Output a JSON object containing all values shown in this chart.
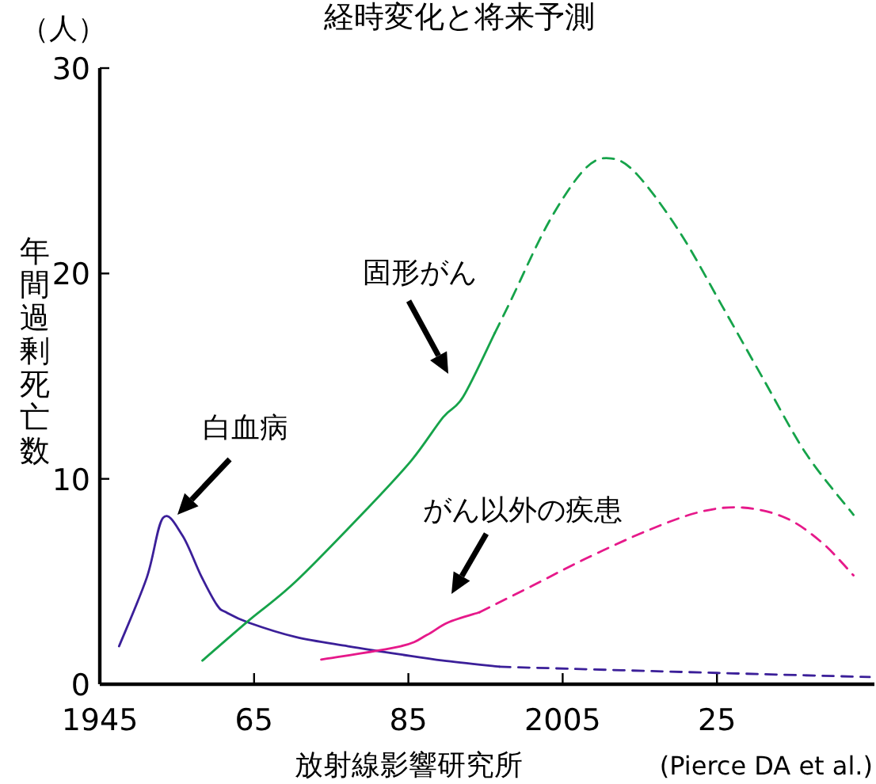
{
  "chart_data": {
    "type": "line",
    "title": "経時変化と将来予測",
    "ylabel": "年間過剰死亡数",
    "xlim": [
      1945,
      2045
    ],
    "ylim": [
      0,
      30
    ],
    "xticks": [
      1945,
      {
        "value": 1965,
        "label": "65"
      },
      {
        "value": 1985,
        "label": "85"
      },
      2005,
      {
        "value": 2025,
        "label": "25"
      }
    ],
    "yticks": [
      0,
      10,
      20,
      30
    ],
    "series": [
      {
        "color": "#3b1f99",
        "line_style": "solid",
        "x": [
          1947.5,
          1951.1,
          1953.2,
          1955.7,
          1958.1,
          1960.2,
          1961.4,
          1964.3,
          1970.4,
          1977.2,
          1984,
          1989.5,
          1996.8
        ],
        "values": [
          1.85,
          5.2,
          8.1,
          7.25,
          5.3,
          3.85,
          3.5,
          3.0,
          2.3,
          1.85,
          1.45,
          1.15,
          0.85
        ]
      },
      {
        "color": "#3b1f99",
        "line_style": "dashed",
        "x": [
          1996.8,
          2025,
          2044.8
        ],
        "values": [
          0.85,
          0.55,
          0.35
        ]
      },
      {
        "color": "#16a34a",
        "line_style": "solid",
        "x": [
          1958.3,
          1964.3,
          1970.4,
          1979.8,
          1985.4,
          1989.5,
          1992.1,
          1996.2
        ],
        "values": [
          1.15,
          3.1,
          5.0,
          8.6,
          10.9,
          13.0,
          14.0,
          17.1
        ]
      },
      {
        "color": "#16a34a",
        "line_style": "dashed",
        "x": [
          1996.2,
          1998.3,
          2003.2,
          2007.9,
          2011.3,
          2014.7,
          2020.2,
          2025.7,
          2031.1,
          2036.6,
          2042.7
        ],
        "values": [
          17.1,
          18.7,
          22.5,
          25.1,
          25.6,
          24.8,
          22.0,
          18.4,
          14.8,
          11.2,
          8.25
        ]
      },
      {
        "color": "#e6198a",
        "line_style": "solid",
        "x": [
          1973.7,
          1984,
          1987.4,
          1990.1,
          1994.2
        ],
        "values": [
          1.2,
          1.85,
          2.4,
          3.0,
          3.5
        ]
      },
      {
        "color": "#e6198a",
        "line_style": "dashed",
        "x": [
          1994.2,
          2001.1,
          2007.9,
          2016.1,
          2022.9,
          2028.4,
          2033.9,
          2038.6,
          2042.7
        ],
        "values": [
          3.5,
          4.8,
          6.1,
          7.5,
          8.4,
          8.6,
          8.1,
          6.9,
          5.3
        ]
      }
    ],
    "annotations": [
      "白血病",
      "固形がん",
      "がん以外の疾患",
      "（人）",
      "放射線影響研究所",
      "(Pierce DA et al.)"
    ]
  }
}
